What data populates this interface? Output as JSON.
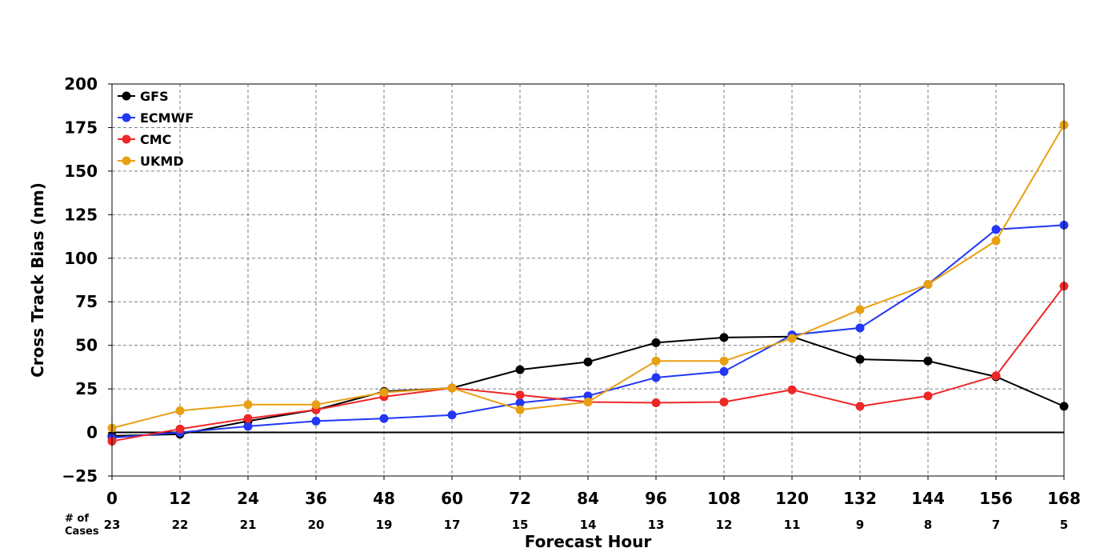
{
  "chart_data": {
    "type": "line",
    "title": "",
    "xlabel": "Forecast Hour",
    "ylabel": "Cross Track Bias (nm)",
    "x": [
      0,
      12,
      24,
      36,
      48,
      60,
      72,
      84,
      96,
      108,
      120,
      132,
      144,
      156,
      168
    ],
    "x_tick_labels": [
      "0",
      "12",
      "24",
      "36",
      "48",
      "60",
      "72",
      "84",
      "96",
      "108",
      "120",
      "132",
      "144",
      "156",
      "168"
    ],
    "y_ticks": [
      -25,
      0,
      25,
      50,
      75,
      100,
      125,
      150,
      175,
      200
    ],
    "y_tick_labels": [
      "−25",
      "0",
      "25",
      "50",
      "75",
      "100",
      "125",
      "150",
      "175",
      "200"
    ],
    "xlim": [
      0,
      168
    ],
    "ylim": [
      -25,
      200
    ],
    "grid": true,
    "legend_position": "top-left",
    "cases_label": [
      "# of",
      "Cases"
    ],
    "cases": [
      "23",
      "22",
      "21",
      "20",
      "19",
      "17",
      "15",
      "14",
      "13",
      "12",
      "11",
      "9",
      "8",
      "7",
      "5"
    ],
    "series": [
      {
        "name": "GFS",
        "color": "#000000",
        "values": [
          -2,
          -1,
          6.5,
          13,
          23.5,
          25.5,
          36,
          40.5,
          51.5,
          54.5,
          55,
          42,
          41,
          32,
          15
        ]
      },
      {
        "name": "ECMWF",
        "color": "#2137f5",
        "values": [
          -3,
          0,
          3.5,
          6.5,
          8,
          10,
          17,
          21,
          31.5,
          35,
          56,
          60,
          85,
          116.5,
          119
        ]
      },
      {
        "name": "CMC",
        "color": "#ef2727",
        "values": [
          -5,
          2,
          8,
          13,
          20.5,
          25.5,
          21.5,
          17.5,
          17,
          17.5,
          24.5,
          15,
          21,
          32.5,
          84
        ]
      },
      {
        "name": "UKMD",
        "color": "#e8a013",
        "values": [
          2.5,
          12.5,
          16,
          16,
          23,
          25.5,
          13,
          17.5,
          41,
          41,
          54,
          70.5,
          85,
          110,
          176.5
        ]
      }
    ]
  }
}
